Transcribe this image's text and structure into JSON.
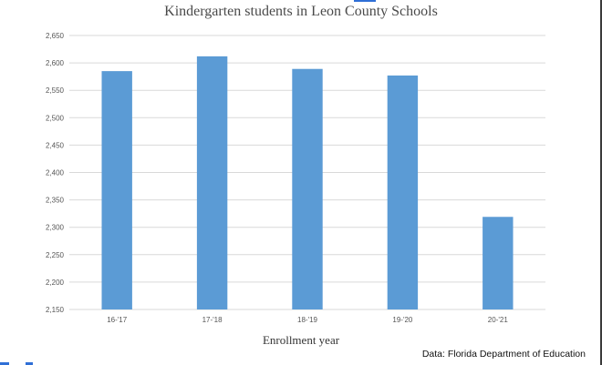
{
  "chart_data": {
    "type": "bar",
    "title": "Kindergarten students in Leon County Schools",
    "xlabel": "Enrollment year",
    "ylabel": "",
    "categories": [
      "16-'17",
      "17-'18",
      "18-'19",
      "19-'20",
      "20-'21"
    ],
    "values": [
      2585,
      2612,
      2589,
      2577,
      2319
    ],
    "ylim": [
      2150,
      2650
    ],
    "yticks": [
      "2,150",
      "2,200",
      "2,250",
      "2,300",
      "2,350",
      "2,400",
      "2,450",
      "2,500",
      "2,550",
      "2,600",
      "2,650"
    ],
    "grid": true,
    "bar_color": "#5b9bd5",
    "grid_color": "#d9d9d9"
  },
  "source": "Data: Florida Department of Education"
}
